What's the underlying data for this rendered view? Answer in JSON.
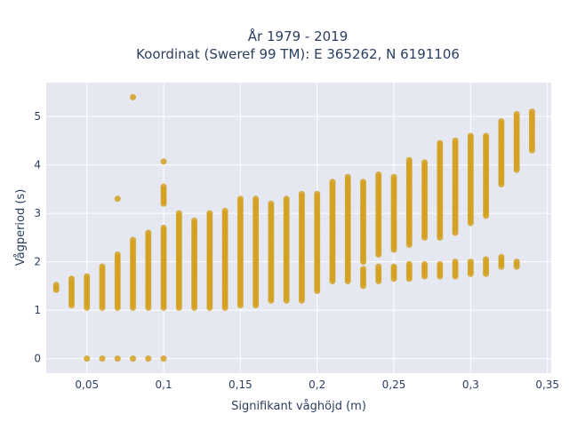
{
  "chart_data": {
    "type": "scatter",
    "title_line1": "År 1979 - 2019",
    "title_line2": "Koordinat (Sweref 99 TM): E 365262, N 6191106",
    "xlabel": "Signifikant våghöjd (m)",
    "ylabel": "Vågperiod (s)",
    "xlim": [
      0.0235,
      0.3525
    ],
    "ylim": [
      -0.3,
      5.7
    ],
    "x_ticks": [
      0.05,
      0.1,
      0.15,
      0.2,
      0.25,
      0.3,
      0.35
    ],
    "x_tick_labels": [
      "0,05",
      "0,1",
      "0,15",
      "0,2",
      "0,25",
      "0,3",
      "0,35"
    ],
    "y_ticks": [
      0,
      1,
      2,
      3,
      4,
      5
    ],
    "y_tick_labels": [
      "0",
      "1",
      "2",
      "3",
      "4",
      "5"
    ],
    "grid": true,
    "legend": "none",
    "colors": {
      "marker": "#d4a020",
      "plot_bg": "#e5e8f1",
      "grid": "#ffffff",
      "text": "#2a3f5f"
    },
    "series": [
      {
        "columns": [
          {
            "x": 0.03,
            "segments": [
              [
                1.42,
                1.52
              ]
            ]
          },
          {
            "x": 0.04,
            "segments": [
              [
                1.1,
                1.65
              ]
            ]
          },
          {
            "x": 0.05,
            "segments": [
              [
                1.05,
                1.7
              ],
              [
                0,
                0
              ]
            ]
          },
          {
            "x": 0.06,
            "segments": [
              [
                1.05,
                1.9
              ],
              [
                0,
                0
              ]
            ]
          },
          {
            "x": 0.07,
            "segments": [
              [
                1.05,
                2.15
              ],
              [
                3.3,
                3.3
              ],
              [
                0,
                0
              ]
            ]
          },
          {
            "x": 0.08,
            "segments": [
              [
                1.05,
                2.45
              ],
              [
                5.4,
                5.4
              ],
              [
                0,
                0
              ]
            ]
          },
          {
            "x": 0.09,
            "segments": [
              [
                1.05,
                2.6
              ],
              [
                0,
                0
              ]
            ]
          },
          {
            "x": 0.1,
            "segments": [
              [
                1.05,
                2.7
              ],
              [
                3.2,
                3.55
              ],
              [
                4.07,
                4.07
              ],
              [
                0,
                0
              ]
            ]
          },
          {
            "x": 0.11,
            "segments": [
              [
                1.05,
                3.0
              ]
            ]
          },
          {
            "x": 0.12,
            "segments": [
              [
                1.05,
                2.85
              ]
            ]
          },
          {
            "x": 0.13,
            "segments": [
              [
                1.05,
                3.0
              ]
            ]
          },
          {
            "x": 0.14,
            "segments": [
              [
                1.05,
                3.05
              ]
            ]
          },
          {
            "x": 0.15,
            "segments": [
              [
                1.1,
                3.3
              ]
            ]
          },
          {
            "x": 0.16,
            "segments": [
              [
                1.1,
                3.3
              ]
            ]
          },
          {
            "x": 0.17,
            "segments": [
              [
                1.2,
                3.2
              ]
            ]
          },
          {
            "x": 0.18,
            "segments": [
              [
                1.2,
                3.3
              ]
            ]
          },
          {
            "x": 0.19,
            "segments": [
              [
                1.2,
                3.4
              ]
            ]
          },
          {
            "x": 0.2,
            "segments": [
              [
                1.4,
                3.4
              ]
            ]
          },
          {
            "x": 0.21,
            "segments": [
              [
                1.6,
                3.65
              ]
            ]
          },
          {
            "x": 0.22,
            "segments": [
              [
                1.6,
                3.75
              ]
            ]
          },
          {
            "x": 0.23,
            "segments": [
              [
                1.5,
                1.85
              ],
              [
                2.0,
                3.65
              ]
            ]
          },
          {
            "x": 0.24,
            "segments": [
              [
                1.6,
                1.9
              ],
              [
                2.15,
                3.8
              ]
            ]
          },
          {
            "x": 0.25,
            "segments": [
              [
                1.65,
                1.9
              ],
              [
                2.25,
                3.75
              ]
            ]
          },
          {
            "x": 0.26,
            "segments": [
              [
                1.65,
                1.95
              ],
              [
                2.35,
                4.1
              ]
            ]
          },
          {
            "x": 0.27,
            "segments": [
              [
                1.7,
                1.95
              ],
              [
                2.5,
                4.05
              ]
            ]
          },
          {
            "x": 0.28,
            "segments": [
              [
                1.7,
                1.95
              ],
              [
                2.5,
                4.45
              ]
            ]
          },
          {
            "x": 0.29,
            "segments": [
              [
                1.7,
                2.0
              ],
              [
                2.6,
                4.5
              ]
            ]
          },
          {
            "x": 0.3,
            "segments": [
              [
                1.75,
                2.0
              ],
              [
                2.8,
                4.6
              ]
            ]
          },
          {
            "x": 0.31,
            "segments": [
              [
                1.75,
                2.05
              ],
              [
                2.95,
                4.6
              ]
            ]
          },
          {
            "x": 0.32,
            "segments": [
              [
                1.9,
                2.1
              ],
              [
                3.6,
                4.9
              ]
            ]
          },
          {
            "x": 0.33,
            "segments": [
              [
                1.9,
                2.0
              ],
              [
                3.9,
                5.05
              ]
            ]
          },
          {
            "x": 0.34,
            "segments": [
              [
                4.3,
                5.1
              ]
            ]
          }
        ]
      }
    ]
  }
}
